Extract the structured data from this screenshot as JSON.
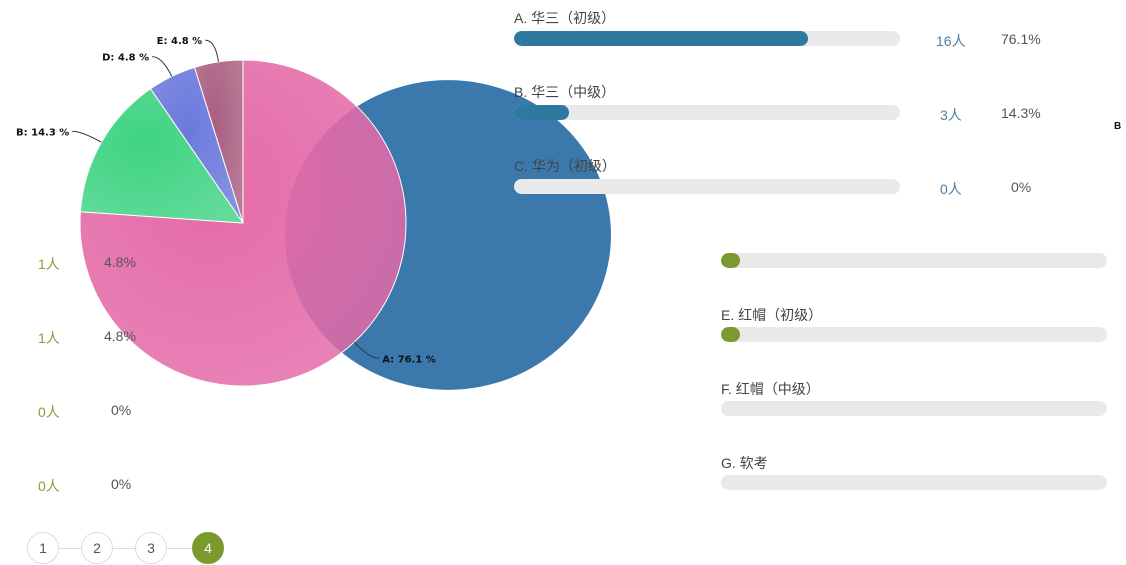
{
  "chart_data": {
    "type": "pie",
    "slices": [
      {
        "label": "A",
        "value": 76.1,
        "text": "A: 76.1 %",
        "color": "#e46aa8"
      },
      {
        "label": "B",
        "value": 14.3,
        "text": "B: 14.3 %",
        "color": "#3fd383"
      },
      {
        "label": "D",
        "value": 4.8,
        "text": "D: 4.8 %",
        "color": "#6b79dc"
      },
      {
        "label": "E",
        "value": 4.8,
        "text": "E: 4.8 %",
        "color": "#a95f80"
      }
    ]
  },
  "top_options": [
    {
      "label": "A. 华三（初级）",
      "count": "16人",
      "percent": "76.1%",
      "fraction": 0.761
    },
    {
      "label": "B. 华三（中级）",
      "count": "3人",
      "percent": "14.3%",
      "fraction": 0.143
    },
    {
      "label": "C. 华为（初级）",
      "count": "0人",
      "percent": "0%",
      "fraction": 0
    }
  ],
  "right_options": [
    {
      "label": "",
      "fraction": 0.048
    },
    {
      "label": "E. 红帽（初级）",
      "fraction": 0.048
    },
    {
      "label": "F. 红帽（中级）",
      "fraction": 0
    },
    {
      "label": "G. 软考",
      "fraction": 0
    }
  ],
  "left_stats": [
    {
      "count": "1人",
      "percent": "4.8%"
    },
    {
      "count": "1人",
      "percent": "4.8%"
    },
    {
      "count": "0人",
      "percent": "0%"
    },
    {
      "count": "0人",
      "percent": "0%"
    }
  ],
  "edge_letter": "B",
  "pagination": {
    "pages": [
      "1",
      "2",
      "3",
      "4"
    ],
    "active_index": 3,
    "active_color": "#7a9a2e"
  }
}
